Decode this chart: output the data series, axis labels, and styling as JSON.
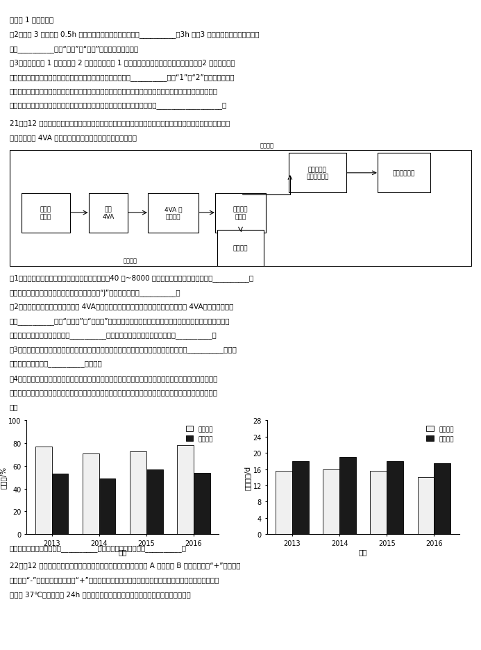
{
  "page_background": "#ffffff",
  "top_text_lines": [
    "（答出 1 种即可）。",
    "（2）图中 3 种激素在 0.5h 之前促进血糖升高效应最好的是__________，3h 时，3 种激素联合作用升高血糖的",
    "效应__________（填“大于”或“小于”）各自效应的总和。",
    "（3）糖尿病分为 1 型糖尿病和 2 型糖尿病，其中 1 型糖尿病的患病原因为胰岛素分泌不足，2 型糖尿病的患",
    "病原因与胰岛素受体异常有关，一般常通过注射胰岛素的方式对__________（填“1”或“2”）型糖尿病进行",
    "控制。现将一只健康狗的胰腺提取液注射到一只糖尿狗体内，结果该糖尿狗的血糖浓度没有下降，已知该糖尿",
    "狗的胰岛素受体正常，从提取液的成分方面分析，出现该情况的原因最可能是__________________。"
  ],
  "q21_header": "21．（12 分）东亚飞蝇是一种农业害虫，因其聚集、迁飞、暴食等特征给农业生产带来严重的危害。群居蝇虫",
  "q21_header2": "释放的信息素 4VA 能使蝇虫聚集，如图所示。回答下列问题：",
  "survival_chart": {
    "title": "存活率/%",
    "years": [
      "2013",
      "2014",
      "2015",
      "2016"
    ],
    "needle_values": [
      77,
      71,
      73,
      78
    ],
    "sheep_values": [
      53,
      49,
      57,
      54
    ],
    "ylim": [
      0,
      100
    ],
    "yticks": [
      0,
      20,
      40,
      60,
      80,
      100
    ],
    "xlabel": "年份",
    "legend_needle": "针茅草地",
    "legend_sheep": "羊草草地",
    "color_needle": "#f0f0f0",
    "color_sheep": "#1a1a1a"
  },
  "development_chart": {
    "title": "发育历期/d",
    "years": [
      "2013",
      "2014",
      "2015",
      "2016"
    ],
    "needle_values": [
      15.5,
      16.0,
      15.5,
      14.0
    ],
    "sheep_values": [
      18.0,
      19.0,
      18.0,
      17.5
    ],
    "ylim": [
      0,
      28
    ],
    "yticks": [
      0,
      4,
      8,
      12,
      16,
      20,
      24,
      28
    ],
    "xlabel": "年份",
    "legend_needle": "针茅草地",
    "legend_sheep": "羊草草地",
    "color_needle": "#f0f0f0",
    "color_sheep": "#1a1a1a"
  },
  "q_lines": [
    "（1）东亚飞蝇能聚集成巨大的蝇群，每平方公里有40 万~8000 万头，这描述的情况属于种群的__________特",
    "征。在东亚飞蝇爆发早期，其种群数量一般呈现“J”形增长，原因是__________。",
    "（2）少量蝇虫聚集后能释放信息素 4VA，促使更多的蝇虫聚集，从而产生更多的信息素 4VA，这属于生态系",
    "统的__________（填“正反馈”或“负反馈”）调节。蝇虫成灾时，人们利用樱子吞食蝇虫卵能有效减轻蝇虫",
    "带来的危害，降低了蝇虫种群的__________从而控制其数量。这种防治方法属于__________。",
    "（3）聚集型蝇虫分泌的毒性物质苯乙梅能降低其被天敌捕食的概率，苯乙梅属于生态系统的__________信息，",
    "体现了信息传递具有__________的作用。",
    "（4）羊草和针茅为某草原的主要牧草，为了解草原植被类型与蝇虫爆发的关联，将相同数量的跳螈（蝇虫幼",
    "虫）置于样地，统计跳螈的存活率和发育历期（发育历期指完成一定的发育阶段所经历的时间），结果如图所",
    "示。"
  ],
  "bottom_text": "分析图中信息，东亚飞蝇在__________更容易爆发，判断依据是__________。",
  "q22_header": "22．（12 分）研究人员将结核杆菌分别接种在含有不同浓度抗生素 A 和抗生素 B 的培养基中（“+”表示含有",
  "q22_header2": "抗生素，“-”表示不含有抗生素，“+”越多表示浓度越高）进行培养，分析结核杆菌对这两种抗生素的耐药",
  "q22_header3": "性，在 37℃环境下培养 24h 后，培养基上菌落的生长情况如图所示。回答下列问题：",
  "flowchart_labels": {
    "box_A": "种群密\n度增大",
    "box_B": "释放\n4VA",
    "box_C": "4VA 和\n受体结合",
    "box_D": "信息编码\n传入脑",
    "box_E": "形成警戞色\n合成有毒物质",
    "box_F": "降低被捕食率",
    "box_G": "聚集行为",
    "label_indirect": "间接导致",
    "label_direct": "直接导致"
  }
}
